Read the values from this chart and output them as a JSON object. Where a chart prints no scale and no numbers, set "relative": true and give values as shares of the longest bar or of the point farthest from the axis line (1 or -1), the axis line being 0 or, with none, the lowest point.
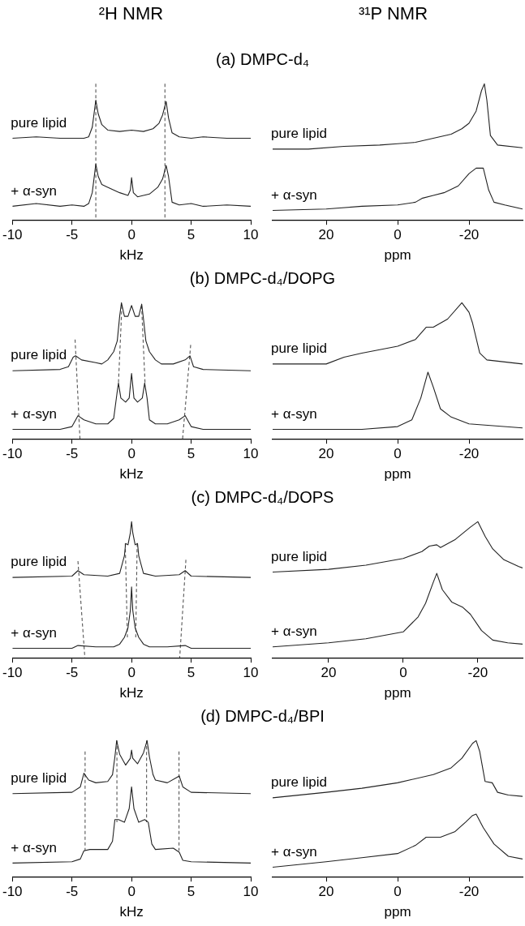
{
  "chart_data": [
    {
      "type": "line",
      "title": "²H NMR",
      "subtitle": "(a) DMPC-d₄",
      "xlabel": "kHz",
      "relative": true,
      "xlim": [
        -10,
        10
      ],
      "xticks": [
        -10,
        -5,
        0,
        5,
        10
      ],
      "series": [
        {
          "name": "pure lipid",
          "color": "#222222",
          "x": [
            -10,
            -8,
            -6,
            -5,
            -4,
            -3.6,
            -3.3,
            -3.0,
            -2.8,
            -2.5,
            -2,
            -1,
            0,
            1,
            1.8,
            2.3,
            2.6,
            2.9,
            3.1,
            3.4,
            4,
            5,
            6,
            8,
            10
          ],
          "values": [
            0.6,
            0.61,
            0.6,
            0.6,
            0.6,
            0.61,
            0.68,
            0.88,
            0.78,
            0.7,
            0.66,
            0.65,
            0.66,
            0.65,
            0.67,
            0.71,
            0.77,
            0.87,
            0.75,
            0.64,
            0.61,
            0.6,
            0.61,
            0.6,
            0.6
          ]
        },
        {
          "name": "+ α-syn",
          "color": "#222222",
          "x": [
            -10,
            -8,
            -6,
            -5,
            -4,
            -3.6,
            -3.3,
            -3.0,
            -2.8,
            -2.5,
            -2,
            -1,
            -0.3,
            -0.1,
            0,
            0.15,
            0.5,
            1.5,
            2.2,
            2.6,
            2.9,
            3.1,
            3.4,
            4,
            5,
            6,
            8,
            10
          ],
          "values": [
            0.1,
            0.12,
            0.1,
            0.11,
            0.1,
            0.12,
            0.2,
            0.41,
            0.32,
            0.26,
            0.24,
            0.2,
            0.18,
            0.22,
            0.31,
            0.2,
            0.17,
            0.19,
            0.24,
            0.3,
            0.4,
            0.32,
            0.13,
            0.11,
            0.12,
            0.1,
            0.11,
            0.1
          ]
        },
        {
          "color": "#555555",
          "line_style": "dashed",
          "x": [
            -3,
            -3
          ],
          "values": [
            1,
            0
          ]
        },
        {
          "color": "#555555",
          "line_style": "dashed",
          "x": [
            2.8,
            2.8
          ],
          "values": [
            1,
            0
          ]
        }
      ]
    },
    {
      "type": "line",
      "title": "³¹P NMR",
      "xlabel": "ppm",
      "relative": true,
      "xlim": [
        35,
        -35
      ],
      "xticks": [
        20,
        0,
        -20
      ],
      "series": [
        {
          "name": "pure lipid",
          "color": "#222222",
          "x": [
            35,
            25,
            15,
            5,
            0,
            -5,
            -10,
            -15,
            -18,
            -20,
            -22,
            -23.5,
            -24.3,
            -25,
            -26,
            -28,
            -35
          ],
          "values": [
            0.52,
            0.52,
            0.54,
            0.55,
            0.56,
            0.57,
            0.6,
            0.63,
            0.67,
            0.71,
            0.8,
            0.95,
            1,
            0.88,
            0.62,
            0.55,
            0.53
          ]
        },
        {
          "name": "+ α-syn",
          "color": "#222222",
          "x": [
            35,
            20,
            10,
            0,
            -5,
            -7,
            -10,
            -13,
            -17,
            -20,
            -22,
            -24,
            -25.5,
            -27,
            -30,
            -35
          ],
          "values": [
            0.07,
            0.08,
            0.1,
            0.11,
            0.13,
            0.16,
            0.18,
            0.2,
            0.25,
            0.34,
            0.38,
            0.38,
            0.22,
            0.13,
            0.11,
            0.08
          ]
        }
      ]
    },
    {
      "type": "line",
      "subtitle": "(b) DMPC-d₄/DOPG",
      "xlabel": "kHz",
      "relative": true,
      "xlim": [
        -10,
        10
      ],
      "xticks": [
        -10,
        -5,
        0,
        5,
        10
      ],
      "series": [
        {
          "name": "pure lipid",
          "color": "#222222",
          "x": [
            -10,
            -6,
            -5.3,
            -4.9,
            -4.7,
            -4.2,
            -3,
            -2.5,
            -2,
            -1.5,
            -1.2,
            -1.0,
            -0.85,
            -0.6,
            -0.3,
            0,
            0.3,
            0.6,
            0.85,
            1.0,
            1.2,
            1.5,
            2,
            2.5,
            3.5,
            4.5,
            4.9,
            5.2,
            6,
            10
          ],
          "values": [
            0.5,
            0.51,
            0.53,
            0.6,
            0.61,
            0.58,
            0.56,
            0.55,
            0.58,
            0.64,
            0.72,
            0.9,
            1,
            0.9,
            0.9,
            0.98,
            0.9,
            0.9,
            0.99,
            0.88,
            0.72,
            0.64,
            0.58,
            0.55,
            0.55,
            0.58,
            0.61,
            0.53,
            0.51,
            0.5
          ]
        },
        {
          "name": "+ α-syn",
          "color": "#222222",
          "x": [
            -10,
            -6,
            -5,
            -4.5,
            -4,
            -3,
            -2,
            -1.5,
            -1.2,
            -1.1,
            -0.9,
            -0.5,
            -0.2,
            0,
            0.2,
            0.5,
            0.9,
            1.1,
            1.3,
            1.5,
            2,
            3,
            4,
            4.5,
            5,
            6,
            10
          ],
          "values": [
            0.07,
            0.07,
            0.09,
            0.17,
            0.14,
            0.11,
            0.11,
            0.15,
            0.35,
            0.41,
            0.3,
            0.27,
            0.3,
            0.48,
            0.3,
            0.27,
            0.3,
            0.41,
            0.3,
            0.14,
            0.11,
            0.11,
            0.14,
            0.17,
            0.09,
            0.07,
            0.07
          ]
        },
        {
          "color": "#555555",
          "line_style": "dashed",
          "x": [
            -4.74,
            -4.33
          ],
          "values": [
            0.73,
            0
          ]
        },
        {
          "color": "#555555",
          "line_style": "dashed",
          "x": [
            4.96,
            4.28
          ],
          "values": [
            0.69,
            0
          ]
        },
        {
          "color": "#555555",
          "line_style": "dashed",
          "x": [
            -0.81,
            -1.1
          ],
          "values": [
            0.98,
            0.41
          ]
        },
        {
          "color": "#555555",
          "line_style": "dashed",
          "x": [
            0.84,
            1.13
          ],
          "values": [
            0.98,
            0.41
          ]
        }
      ]
    },
    {
      "type": "line",
      "xlabel": "ppm",
      "relative": true,
      "xlim": [
        35,
        -35
      ],
      "xticks": [
        20,
        0,
        -20
      ],
      "series": [
        {
          "name": "pure lipid",
          "color": "#222222",
          "x": [
            35,
            20,
            15,
            10,
            0,
            -5,
            -8,
            -10,
            -14,
            -18,
            -20,
            -21,
            -23,
            -25,
            -35
          ],
          "values": [
            0.55,
            0.55,
            0.6,
            0.63,
            0.68,
            0.73,
            0.82,
            0.82,
            0.88,
            1,
            0.93,
            0.85,
            0.63,
            0.58,
            0.55
          ]
        },
        {
          "name": "+ α-syn",
          "color": "#222222",
          "x": [
            35,
            10,
            0,
            -4,
            -6.5,
            -8.5,
            -10,
            -12,
            -15,
            -20,
            -35
          ],
          "values": [
            0.07,
            0.07,
            0.09,
            0.14,
            0.3,
            0.49,
            0.38,
            0.22,
            0.16,
            0.11,
            0.08
          ]
        }
      ]
    },
    {
      "type": "line",
      "subtitle": "(c) DMPC-d₄/DOPS",
      "xlabel": "kHz",
      "relative": true,
      "xlim": [
        -10,
        10
      ],
      "xticks": [
        -10,
        -5,
        0,
        5,
        10
      ],
      "series": [
        {
          "name": "pure lipid",
          "color": "#222222",
          "x": [
            -10,
            -5,
            -4.5,
            -4,
            -2,
            -1,
            -0.6,
            -0.5,
            -0.3,
            -0.1,
            0,
            0.1,
            0.3,
            0.5,
            0.6,
            1,
            2,
            4,
            4.5,
            5,
            10
          ],
          "values": [
            0.59,
            0.6,
            0.64,
            0.61,
            0.6,
            0.62,
            0.75,
            0.84,
            0.83,
            0.92,
            1,
            0.92,
            0.83,
            0.84,
            0.75,
            0.62,
            0.6,
            0.61,
            0.64,
            0.6,
            0.59
          ]
        },
        {
          "name": "+ α-syn",
          "color": "#222222",
          "x": [
            -10,
            -5,
            -4.5,
            -3,
            -1.5,
            -1,
            -0.6,
            -0.3,
            -0.1,
            0,
            0.1,
            0.3,
            0.6,
            1,
            1.5,
            3,
            4.5,
            5,
            10
          ],
          "values": [
            0.07,
            0.07,
            0.09,
            0.08,
            0.08,
            0.1,
            0.15,
            0.22,
            0.35,
            0.52,
            0.35,
            0.22,
            0.15,
            0.1,
            0.08,
            0.08,
            0.09,
            0.07,
            0.07
          ]
        },
        {
          "color": "#555555",
          "line_style": "dashed",
          "x": [
            -4.5,
            -3.92
          ],
          "values": [
            0.71,
            0
          ]
        },
        {
          "color": "#555555",
          "line_style": "dashed",
          "x": [
            4.56,
            4.04
          ],
          "values": [
            0.72,
            0
          ]
        },
        {
          "color": "#555555",
          "line_style": "dashed",
          "x": [
            -0.53,
            -0.35
          ],
          "values": [
            0.84,
            0.15
          ]
        },
        {
          "color": "#555555",
          "line_style": "dashed",
          "x": [
            0.47,
            0.35
          ],
          "values": [
            0.84,
            0.15
          ]
        }
      ]
    },
    {
      "type": "line",
      "xlabel": "ppm",
      "relative": true,
      "xlim": [
        35,
        -32
      ],
      "xticks": [
        20,
        0,
        -20
      ],
      "series": [
        {
          "name": "pure lipid",
          "color": "#222222",
          "x": [
            35,
            20,
            10,
            0,
            -5,
            -7,
            -9,
            -10,
            -14,
            -18,
            -20,
            -22,
            -24,
            -27,
            -31,
            -32
          ],
          "values": [
            0.63,
            0.65,
            0.68,
            0.73,
            0.78,
            0.82,
            0.83,
            0.81,
            0.87,
            0.96,
            1,
            0.89,
            0.8,
            0.72,
            0.67,
            0.66
          ]
        },
        {
          "name": "+ α-syn",
          "color": "#222222",
          "x": [
            35,
            20,
            10,
            0,
            -4,
            -6,
            -8,
            -9,
            -10.5,
            -13,
            -16,
            -18,
            -21,
            -24,
            -28,
            -32
          ],
          "values": [
            0.08,
            0.11,
            0.14,
            0.19,
            0.3,
            0.4,
            0.55,
            0.62,
            0.5,
            0.41,
            0.37,
            0.32,
            0.2,
            0.13,
            0.11,
            0.1
          ]
        }
      ]
    },
    {
      "type": "line",
      "subtitle": "(d) DMPC-d₄/BPI",
      "xlabel": "kHz",
      "relative": true,
      "xlim": [
        -10,
        10
      ],
      "xticks": [
        -10,
        -5,
        0,
        5,
        10
      ],
      "series": [
        {
          "name": "pure lipid",
          "color": "#222222",
          "x": [
            -10,
            -5,
            -4.3,
            -4,
            -3.6,
            -3,
            -2,
            -1.6,
            -1.4,
            -1.25,
            -1,
            -0.5,
            -0.1,
            0,
            0.1,
            0.5,
            1,
            1.3,
            1.5,
            1.8,
            2,
            3,
            3.8,
            4,
            4.3,
            5,
            10
          ],
          "values": [
            0.61,
            0.62,
            0.66,
            0.76,
            0.71,
            0.69,
            0.7,
            0.75,
            0.88,
            1,
            0.9,
            0.82,
            0.87,
            0.93,
            0.87,
            0.83,
            0.91,
            1,
            0.88,
            0.75,
            0.71,
            0.69,
            0.73,
            0.74,
            0.66,
            0.62,
            0.61
          ]
        },
        {
          "name": "+ α-syn",
          "color": "#222222",
          "x": [
            -10,
            -5,
            -4.3,
            -4,
            -3.5,
            -2,
            -1.6,
            -1.4,
            -1.1,
            -0.6,
            -0.2,
            0,
            0.2,
            0.6,
            1.1,
            1.4,
            1.7,
            2,
            3.5,
            4,
            4.3,
            5,
            10
          ],
          "values": [
            0.1,
            0.11,
            0.13,
            0.19,
            0.2,
            0.2,
            0.26,
            0.42,
            0.42,
            0.4,
            0.5,
            0.66,
            0.5,
            0.4,
            0.42,
            0.4,
            0.24,
            0.2,
            0.21,
            0.18,
            0.12,
            0.11,
            0.1
          ]
        },
        {
          "color": "#555555",
          "line_style": "dashed",
          "x": [
            -3.9,
            -3.9
          ],
          "values": [
            0.92,
            0.19
          ]
        },
        {
          "color": "#555555",
          "line_style": "dashed",
          "x": [
            3.98,
            3.98
          ],
          "values": [
            0.92,
            0.19
          ]
        },
        {
          "color": "#555555",
          "line_style": "dashed",
          "x": [
            -1.23,
            -1.23
          ],
          "values": [
            1,
            0.4
          ]
        },
        {
          "color": "#555555",
          "line_style": "dashed",
          "x": [
            1.26,
            1.26
          ],
          "values": [
            1,
            0.4
          ]
        }
      ]
    },
    {
      "type": "line",
      "xlabel": "ppm",
      "relative": true,
      "xlim": [
        35,
        -35
      ],
      "xticks": [
        20,
        0,
        -20
      ],
      "series": [
        {
          "name": "pure lipid",
          "color": "#222222",
          "x": [
            35,
            20,
            10,
            0,
            -10,
            -15,
            -18,
            -21,
            -22,
            -23,
            -24.5,
            -26.5,
            -28,
            -31,
            -35
          ],
          "values": [
            0.58,
            0.62,
            0.65,
            0.69,
            0.75,
            0.8,
            0.87,
            0.98,
            1,
            0.92,
            0.7,
            0.69,
            0.62,
            0.6,
            0.59
          ]
        },
        {
          "name": "+ α-syn",
          "color": "#222222",
          "x": [
            35,
            20,
            10,
            0,
            -5,
            -8,
            -9,
            -12,
            -16,
            -19,
            -21,
            -22,
            -24,
            -27,
            -31,
            -35
          ],
          "values": [
            0.07,
            0.11,
            0.14,
            0.17,
            0.23,
            0.29,
            0.29,
            0.29,
            0.33,
            0.4,
            0.45,
            0.46,
            0.36,
            0.24,
            0.15,
            0.13
          ]
        }
      ]
    }
  ]
}
